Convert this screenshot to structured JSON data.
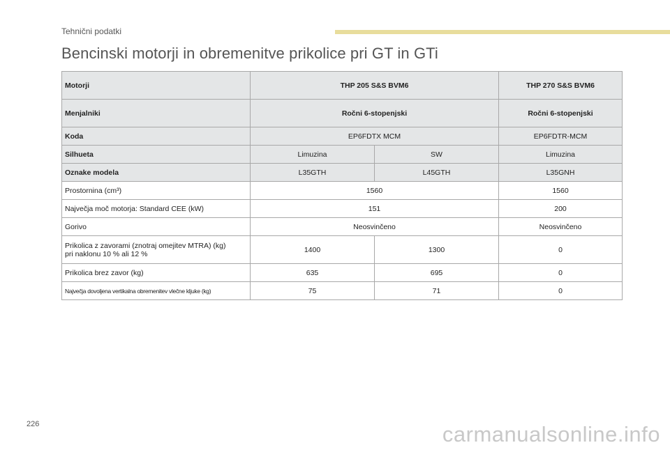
{
  "header": {
    "section": "Tehnični podatki",
    "title": "Bencinski motorji in obremenitve prikolice pri GT in GTi"
  },
  "table": {
    "engine_label": "Motorji",
    "engine_1": "THP 205 S&S BVM6",
    "engine_2": "THP 270 S&S BVM6",
    "gearbox_label": "Menjalniki",
    "gearbox_1": "Ročni 6-stopenjski",
    "gearbox_2": "Ročni 6-stopenjski",
    "code_label": "Koda",
    "code_1": "EP6FDTX MCM",
    "code_2": "EP6FDTR-MCM",
    "body_label": "Silhueta",
    "body": [
      "Limuzina",
      "SW",
      "Limuzina"
    ],
    "model_label": "Oznake modela",
    "model": [
      "L35GTH",
      "L45GTH",
      "L35GNH"
    ],
    "displacement_label": "Prostornina (cm³)",
    "displacement_1": "1560",
    "displacement_2": "1560",
    "power_label": "Največja moč motorja: Standard CEE (kW)",
    "power_1": "151",
    "power_2": "200",
    "fuel_label": "Gorivo",
    "fuel_1": "Neosvinčeno",
    "fuel_2": "Neosvinčeno",
    "braked_label_1": "Prikolica z zavorami (znotraj omejitev MTRA) (kg)",
    "braked_label_2": "pri naklonu 10 % ali 12 %",
    "braked": [
      "1400",
      "1300",
      "0"
    ],
    "unbraked_label": "Prikolica brez zavor (kg)",
    "unbraked": [
      "635",
      "695",
      "0"
    ],
    "noseweight_label": "Največja dovoljena vertikalna obremenitev vlečne kljuke (kg)",
    "noseweight": [
      "75",
      "71",
      "0"
    ]
  },
  "footer": {
    "page_number": "226",
    "watermark": "carmanualsonline.info"
  }
}
